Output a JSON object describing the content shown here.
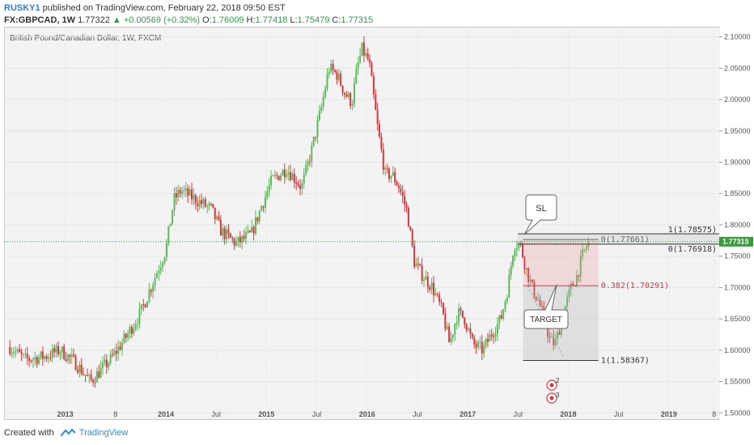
{
  "header": {
    "user": "RUSKY1",
    "published": " published on TradingView.com, February 22, 2018 09:50 EST",
    "symbol": "FX:GBPCAD, 1W",
    "last": "1.77322",
    "change": "+0.00569 (+0.32%)",
    "o_label": "O:",
    "o_value": "1.76009",
    "h_label": "H:",
    "h_value": "1.77418",
    "l_label": "L:",
    "l_value": "1.75479",
    "c_label": "C:",
    "c_value": "1.77315"
  },
  "footer": {
    "created": "Created with",
    "brand": "TradingView"
  },
  "chart_data": {
    "type": "candlestick",
    "title": "British Pound/Canadian Dollar, 1W, FXCM",
    "ylim": [
      1.49,
      2.115
    ],
    "y_ticks": [
      "2.10000",
      "2.05000",
      "2.00000",
      "1.95000",
      "1.90000",
      "1.85000",
      "1.80000",
      "1.75000",
      "1.70000",
      "1.65000",
      "1.60000",
      "1.55000",
      "1.50000"
    ],
    "x_ticks": [
      "2013",
      "8",
      "2014",
      "Jul",
      "2015",
      "Jul",
      "2016",
      "Jul",
      "2017",
      "Jul",
      "2018",
      "Jul",
      "2019",
      "8"
    ],
    "last_price_label": "1.77315",
    "last_price": 1.77315,
    "anchors": [
      [
        2012.45,
        1.605
      ],
      [
        2012.6,
        1.585
      ],
      [
        2012.8,
        1.59
      ],
      [
        2012.95,
        1.6
      ],
      [
        2013.1,
        1.58
      ],
      [
        2013.25,
        1.55
      ],
      [
        2013.45,
        1.585
      ],
      [
        2013.6,
        1.62
      ],
      [
        2013.75,
        1.66
      ],
      [
        2013.9,
        1.72
      ],
      [
        2014.0,
        1.76
      ],
      [
        2014.08,
        1.84
      ],
      [
        2014.15,
        1.855
      ],
      [
        2014.3,
        1.84
      ],
      [
        2014.45,
        1.825
      ],
      [
        2014.55,
        1.79
      ],
      [
        2014.7,
        1.77
      ],
      [
        2014.85,
        1.785
      ],
      [
        2014.95,
        1.83
      ],
      [
        2015.05,
        1.87
      ],
      [
        2015.2,
        1.89
      ],
      [
        2015.35,
        1.86
      ],
      [
        2015.45,
        1.92
      ],
      [
        2015.55,
        1.99
      ],
      [
        2015.62,
        2.05
      ],
      [
        2015.7,
        2.04
      ],
      [
        2015.78,
        2.01
      ],
      [
        2015.85,
        1.995
      ],
      [
        2015.9,
        2.05
      ],
      [
        2015.95,
        2.08
      ],
      [
        2016.02,
        2.06
      ],
      [
        2016.1,
        1.96
      ],
      [
        2016.18,
        1.88
      ],
      [
        2016.25,
        1.88
      ],
      [
        2016.32,
        1.86
      ],
      [
        2016.4,
        1.82
      ],
      [
        2016.47,
        1.74
      ],
      [
        2016.55,
        1.72
      ],
      [
        2016.65,
        1.7
      ],
      [
        2016.75,
        1.66
      ],
      [
        2016.82,
        1.61
      ],
      [
        2016.9,
        1.66
      ],
      [
        2016.97,
        1.65
      ],
      [
        2017.05,
        1.61
      ],
      [
        2017.15,
        1.6
      ],
      [
        2017.25,
        1.63
      ],
      [
        2017.33,
        1.65
      ],
      [
        2017.4,
        1.7
      ],
      [
        2017.46,
        1.77
      ],
      [
        2017.52,
        1.77
      ],
      [
        2017.58,
        1.73
      ],
      [
        2017.64,
        1.7
      ],
      [
        2017.7,
        1.68
      ],
      [
        2017.76,
        1.65
      ],
      [
        2017.82,
        1.615
      ],
      [
        2017.87,
        1.61
      ],
      [
        2017.92,
        1.64
      ],
      [
        2017.97,
        1.67
      ],
      [
        2018.03,
        1.7
      ],
      [
        2018.09,
        1.72
      ],
      [
        2018.14,
        1.75
      ],
      [
        2018.2,
        1.773
      ]
    ],
    "annotations": {
      "fib": [
        {
          "label": "0(1.77661)",
          "value": 1.77661
        },
        {
          "label": "0.382(1.70291)",
          "value": 1.70291
        },
        {
          "label": "1(1.58367)",
          "value": 1.58367
        }
      ],
      "fib_upper": [
        {
          "label": "1(1.78575)",
          "value": 1.78575
        },
        {
          "label": "0(1.76918)",
          "value": 1.76918
        }
      ],
      "callouts": [
        {
          "text": "SL"
        },
        {
          "text": "TARGET"
        }
      ],
      "markers": [
        {
          "text": "2"
        },
        {
          "text": "3"
        }
      ]
    }
  }
}
